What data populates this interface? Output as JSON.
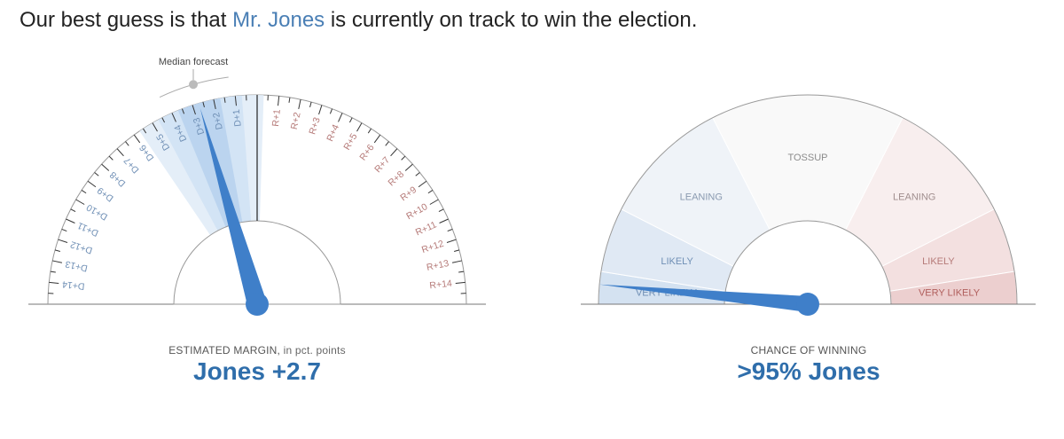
{
  "headline": {
    "prefix": "Our best guess is that ",
    "candidate": "Mr. Jones",
    "suffix": " is currently on track to win the election."
  },
  "margin_gauge": {
    "annotation": "Median forecast",
    "caption_main": "ESTIMATED MARGIN,",
    "caption_sub": " in pct. points",
    "value_label": "Jones +2.7"
  },
  "chance_gauge": {
    "caption": "CHANCE OF WINNING",
    "value_label": ">95% Jones",
    "zones": {
      "tossup": "TOSSUP",
      "leaning_d": "LEANING",
      "leaning_r": "LEANING",
      "likely_d": "LIKELY",
      "likely_r": "LIKELY",
      "very_likely_d": "VERY LIKELY",
      "very_likely_r": "VERY LIKELY"
    }
  },
  "colors": {
    "dem": "#4a86c8",
    "dem_label": "#6f8fb5",
    "rep_label": "#b57a78",
    "needle": "#3f7fc9"
  },
  "chart_data": [
    {
      "type": "gauge",
      "title": "ESTIMATED MARGIN, in pct. points",
      "scale_labels_dem": [
        "D+1",
        "D+2",
        "D+3",
        "D+4",
        "D+5",
        "D+6",
        "D+7",
        "D+8",
        "D+9",
        "D+10",
        "D+11",
        "D+12",
        "D+13",
        "D+14"
      ],
      "scale_labels_rep": [
        "R+1",
        "R+2",
        "R+3",
        "R+4",
        "R+5",
        "R+6",
        "R+7",
        "R+8",
        "R+9",
        "R+10",
        "R+11",
        "R+12",
        "R+13",
        "R+14"
      ],
      "range": [
        -15,
        15
      ],
      "median_forecast": -2.7,
      "uncertainty_bands": [
        [
          -3.7,
          -1.7
        ],
        [
          -4.7,
          -0.7
        ],
        [
          -5.7,
          0.3
        ]
      ],
      "result_label": "Jones +2.7"
    },
    {
      "type": "gauge",
      "title": "CHANCE OF WINNING",
      "zones": [
        "VERY LIKELY",
        "LIKELY",
        "LEANING",
        "TOSSUP",
        "LEANING",
        "LIKELY",
        "VERY LIKELY"
      ],
      "zone_bounds_pct_dem": [
        100,
        95,
        85,
        65,
        35,
        15,
        5,
        0
      ],
      "chance_dem_pct": 97,
      "result_label": ">95% Jones"
    }
  ]
}
